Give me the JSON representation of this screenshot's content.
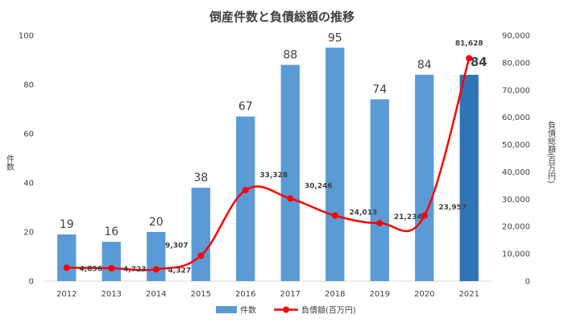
{
  "chart_data": {
    "type": "bar",
    "title": "倒産件数と負債総額の推移",
    "categories": [
      "2012",
      "2013",
      "2014",
      "2015",
      "2016",
      "2017",
      "2018",
      "2019",
      "2020",
      "2021"
    ],
    "y_left": {
      "label": "件数",
      "range": [
        0,
        100
      ],
      "ticks": [
        "0",
        "20",
        "40",
        "60",
        "80",
        "100"
      ],
      "tick_values": [
        0,
        20,
        40,
        60,
        80,
        100
      ]
    },
    "y_right": {
      "label": "負債総額(百万円)",
      "range": [
        0,
        90000
      ],
      "ticks": [
        "0",
        "10,000",
        "20,000",
        "30,000",
        "40,000",
        "50,000",
        "60,000",
        "70,000",
        "80,000",
        "90,000"
      ],
      "tick_values": [
        0,
        10000,
        20000,
        30000,
        40000,
        50000,
        60000,
        70000,
        80000,
        90000
      ]
    },
    "series": [
      {
        "name": "件数",
        "type": "bar",
        "axis": "left",
        "color": "#5B9BD5",
        "highlight_color": "#2E75B6",
        "values": [
          19,
          16,
          20,
          38,
          67,
          88,
          95,
          74,
          84,
          84
        ],
        "labels": [
          "19",
          "16",
          "20",
          "38",
          "67",
          "88",
          "95",
          "74",
          "84",
          "84"
        ],
        "highlight_index": 9
      },
      {
        "name": "負債額(百万円)",
        "type": "line",
        "axis": "right",
        "color": "#FF0000",
        "values": [
          4896,
          4723,
          4327,
          9307,
          33328,
          30246,
          24013,
          21234,
          23957,
          81628
        ],
        "labels": [
          "4,896",
          "4,723",
          "4,327",
          "9,307",
          "33,328",
          "30,246",
          "24,013",
          "21,234",
          "23,957",
          "81,628"
        ]
      }
    ],
    "grid": false,
    "legend_position": "bottom"
  }
}
